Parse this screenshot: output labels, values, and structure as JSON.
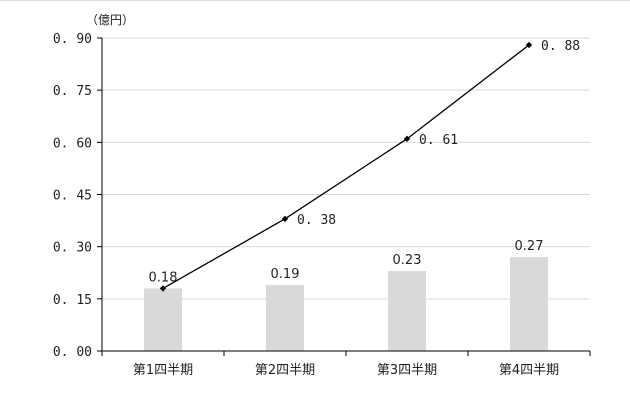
{
  "chart_data": {
    "type": "bar",
    "unit_label": "（億円）",
    "categories": [
      "第1四半期",
      "第2四半期",
      "第3四半期",
      "第4四半期"
    ],
    "y_ticks": [
      "0. 00",
      "0. 15",
      "0. 30",
      "0. 45",
      "0. 60",
      "0. 75",
      "0. 90"
    ],
    "ylim": [
      0,
      0.9
    ],
    "grid": true,
    "series": [
      {
        "kind": "bar",
        "values": [
          0.18,
          0.19,
          0.23,
          0.27
        ],
        "labels": [
          "0.18",
          "0.19",
          "0.23",
          "0.27"
        ],
        "color": "#d9d9d9"
      },
      {
        "kind": "line",
        "values": [
          0.18,
          0.38,
          0.61,
          0.88
        ],
        "labels": [
          "",
          "0. 38",
          "0. 61",
          "0. 88"
        ],
        "color": "#000000"
      }
    ]
  }
}
